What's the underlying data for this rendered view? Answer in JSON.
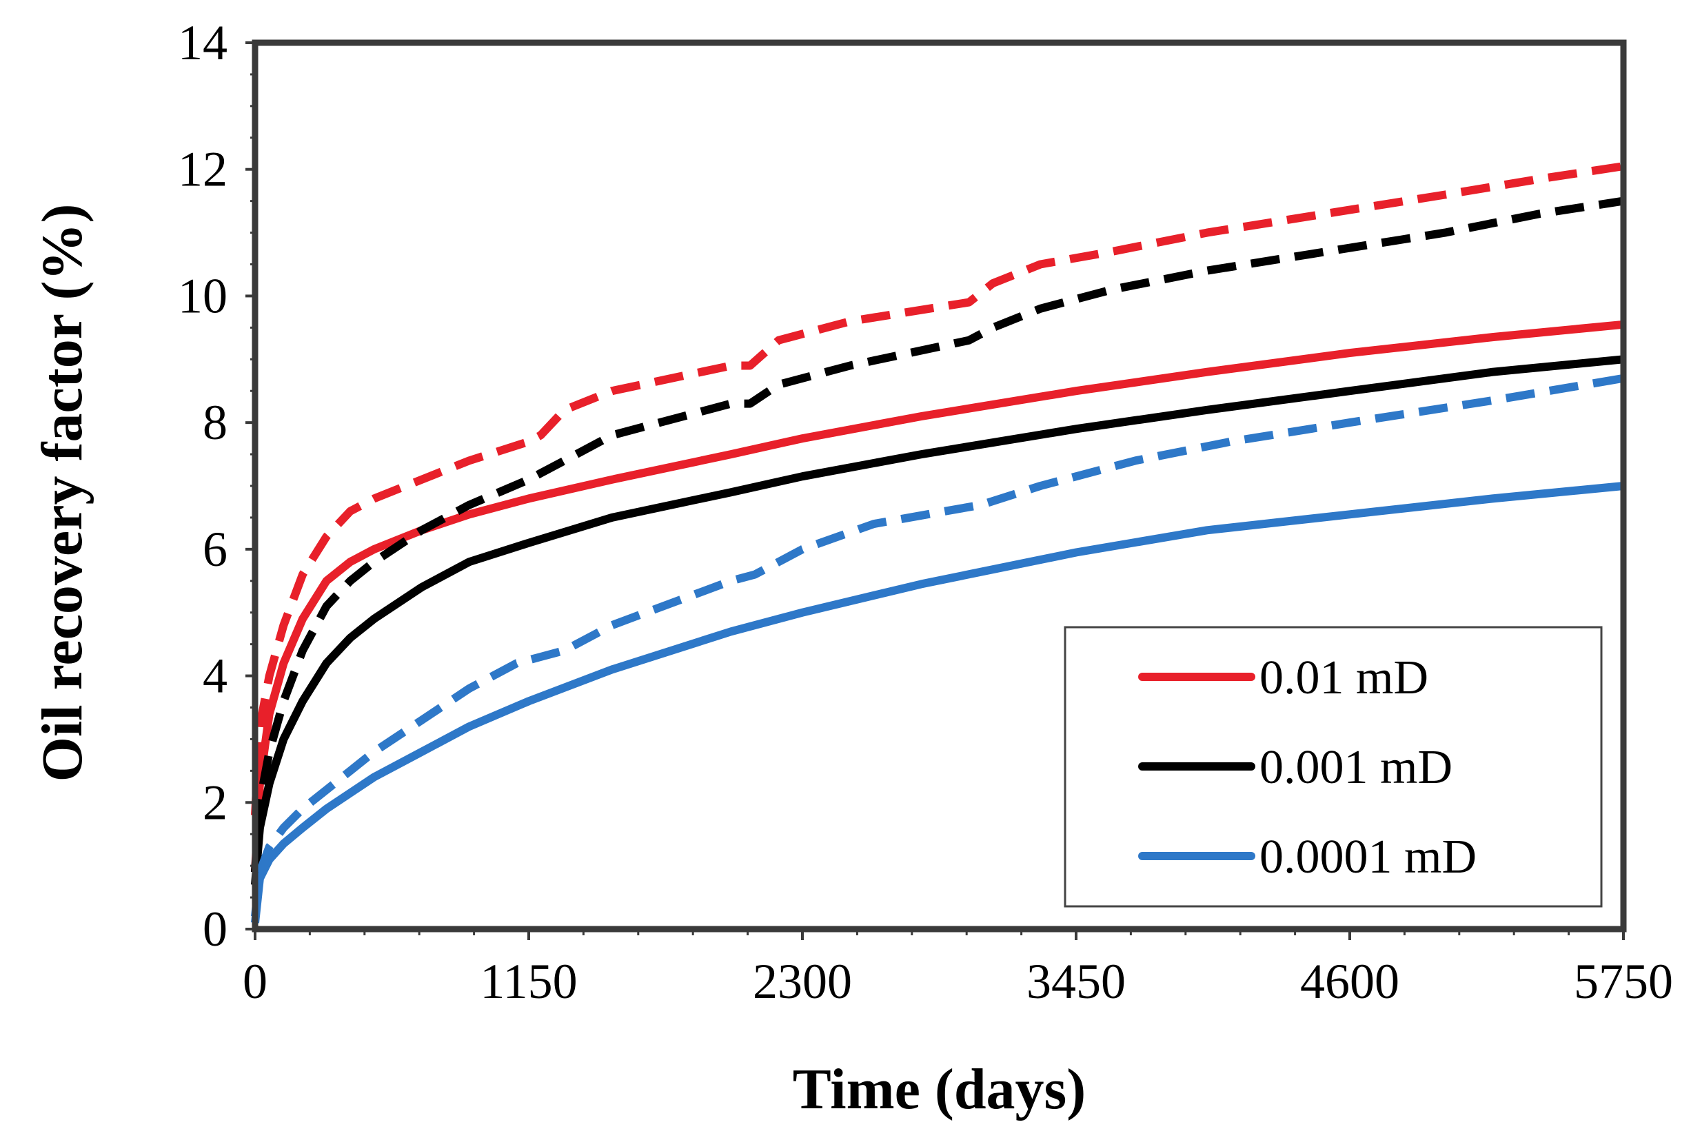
{
  "chart_data": {
    "type": "line",
    "title": "",
    "xlabel": "Time (days)",
    "ylabel": "Oil recovery factor (%)",
    "xlim": [
      0,
      5750
    ],
    "ylim": [
      0,
      14
    ],
    "xticks": [
      0,
      1150,
      2300,
      3450,
      4600,
      5750
    ],
    "yticks": [
      0,
      2,
      4,
      6,
      8,
      10,
      12,
      14
    ],
    "xtick_labels": [
      "0",
      "1150",
      "2300",
      "3450",
      "4600",
      "5750"
    ],
    "ytick_labels": [
      "0",
      "2",
      "4",
      "6",
      "8",
      "10",
      "12",
      "14"
    ],
    "grid": false,
    "legend_position": "bottom-right",
    "legend": [
      {
        "label": "0.01 mD",
        "color": "#e8202a"
      },
      {
        "label": "0.001 mD",
        "color": "#000000"
      },
      {
        "label": "0.0001 mD",
        "color": "#2e78c8"
      }
    ],
    "series": [
      {
        "name": "0.01 mD",
        "style": "solid",
        "color": "#e8202a",
        "x": [
          0,
          20,
          60,
          120,
          200,
          300,
          400,
          500,
          700,
          900,
          1150,
          1500,
          2000,
          2300,
          2800,
          3450,
          4000,
          4600,
          5200,
          5750
        ],
        "y": [
          0.9,
          2.3,
          3.4,
          4.2,
          4.9,
          5.5,
          5.8,
          6.0,
          6.3,
          6.55,
          6.8,
          7.1,
          7.5,
          7.75,
          8.1,
          8.5,
          8.8,
          9.1,
          9.35,
          9.55
        ]
      },
      {
        "name": "0.001 mD",
        "style": "solid",
        "color": "#000000",
        "x": [
          0,
          20,
          60,
          120,
          200,
          300,
          400,
          500,
          700,
          900,
          1150,
          1500,
          2000,
          2300,
          2800,
          3450,
          4000,
          4600,
          5200,
          5750
        ],
        "y": [
          0.7,
          1.6,
          2.3,
          3.0,
          3.6,
          4.2,
          4.6,
          4.9,
          5.4,
          5.8,
          6.1,
          6.5,
          6.9,
          7.15,
          7.5,
          7.9,
          8.2,
          8.5,
          8.8,
          9.0
        ]
      },
      {
        "name": "0.0001 mD",
        "style": "solid",
        "color": "#2e78c8",
        "x": [
          0,
          20,
          60,
          120,
          200,
          300,
          500,
          700,
          900,
          1150,
          1500,
          2000,
          2300,
          2800,
          3450,
          4000,
          4600,
          5200,
          5750
        ],
        "y": [
          0.1,
          0.8,
          1.1,
          1.35,
          1.6,
          1.9,
          2.4,
          2.8,
          3.2,
          3.6,
          4.1,
          4.7,
          5.0,
          5.45,
          5.95,
          6.3,
          6.55,
          6.8,
          7.0
        ]
      },
      {
        "name": "0.01 mD (dashed)",
        "style": "dashed",
        "color": "#e8202a",
        "x": [
          0,
          20,
          60,
          120,
          200,
          300,
          400,
          500,
          700,
          900,
          1150,
          1200,
          1300,
          1500,
          2000,
          2080,
          2200,
          2500,
          3000,
          3100,
          3300,
          3600,
          4000,
          4500,
          5000,
          5400,
          5750
        ],
        "y": [
          1.8,
          3.2,
          4.0,
          4.8,
          5.6,
          6.2,
          6.6,
          6.8,
          7.1,
          7.4,
          7.7,
          7.8,
          8.2,
          8.5,
          8.9,
          8.9,
          9.3,
          9.6,
          9.9,
          10.2,
          10.5,
          10.7,
          11.0,
          11.3,
          11.6,
          11.85,
          12.05
        ]
      },
      {
        "name": "0.001 mD (dashed)",
        "style": "dashed",
        "color": "#000000",
        "x": [
          0,
          20,
          60,
          120,
          200,
          300,
          400,
          500,
          700,
          900,
          1150,
          1200,
          1300,
          1500,
          2000,
          2080,
          2200,
          2500,
          3000,
          3100,
          3300,
          3600,
          4000,
          4500,
          5000,
          5400,
          5750
        ],
        "y": [
          0.9,
          2.0,
          2.8,
          3.6,
          4.4,
          5.1,
          5.5,
          5.8,
          6.3,
          6.7,
          7.1,
          7.2,
          7.4,
          7.8,
          8.3,
          8.3,
          8.6,
          8.9,
          9.3,
          9.5,
          9.8,
          10.1,
          10.4,
          10.7,
          11.0,
          11.3,
          11.5
        ]
      },
      {
        "name": "0.0001 mD (dashed)",
        "style": "dashed",
        "color": "#2e78c8",
        "x": [
          0,
          20,
          60,
          120,
          200,
          300,
          500,
          700,
          900,
          1100,
          1200,
          1300,
          1500,
          2000,
          2100,
          2300,
          2600,
          2900,
          3050,
          3300,
          3700,
          4100,
          4600,
          5200,
          5750
        ],
        "y": [
          0.2,
          0.9,
          1.3,
          1.6,
          1.9,
          2.2,
          2.8,
          3.3,
          3.8,
          4.2,
          4.3,
          4.4,
          4.8,
          5.5,
          5.6,
          6.0,
          6.4,
          6.6,
          6.7,
          7.0,
          7.4,
          7.7,
          8.0,
          8.35,
          8.7
        ]
      }
    ]
  }
}
